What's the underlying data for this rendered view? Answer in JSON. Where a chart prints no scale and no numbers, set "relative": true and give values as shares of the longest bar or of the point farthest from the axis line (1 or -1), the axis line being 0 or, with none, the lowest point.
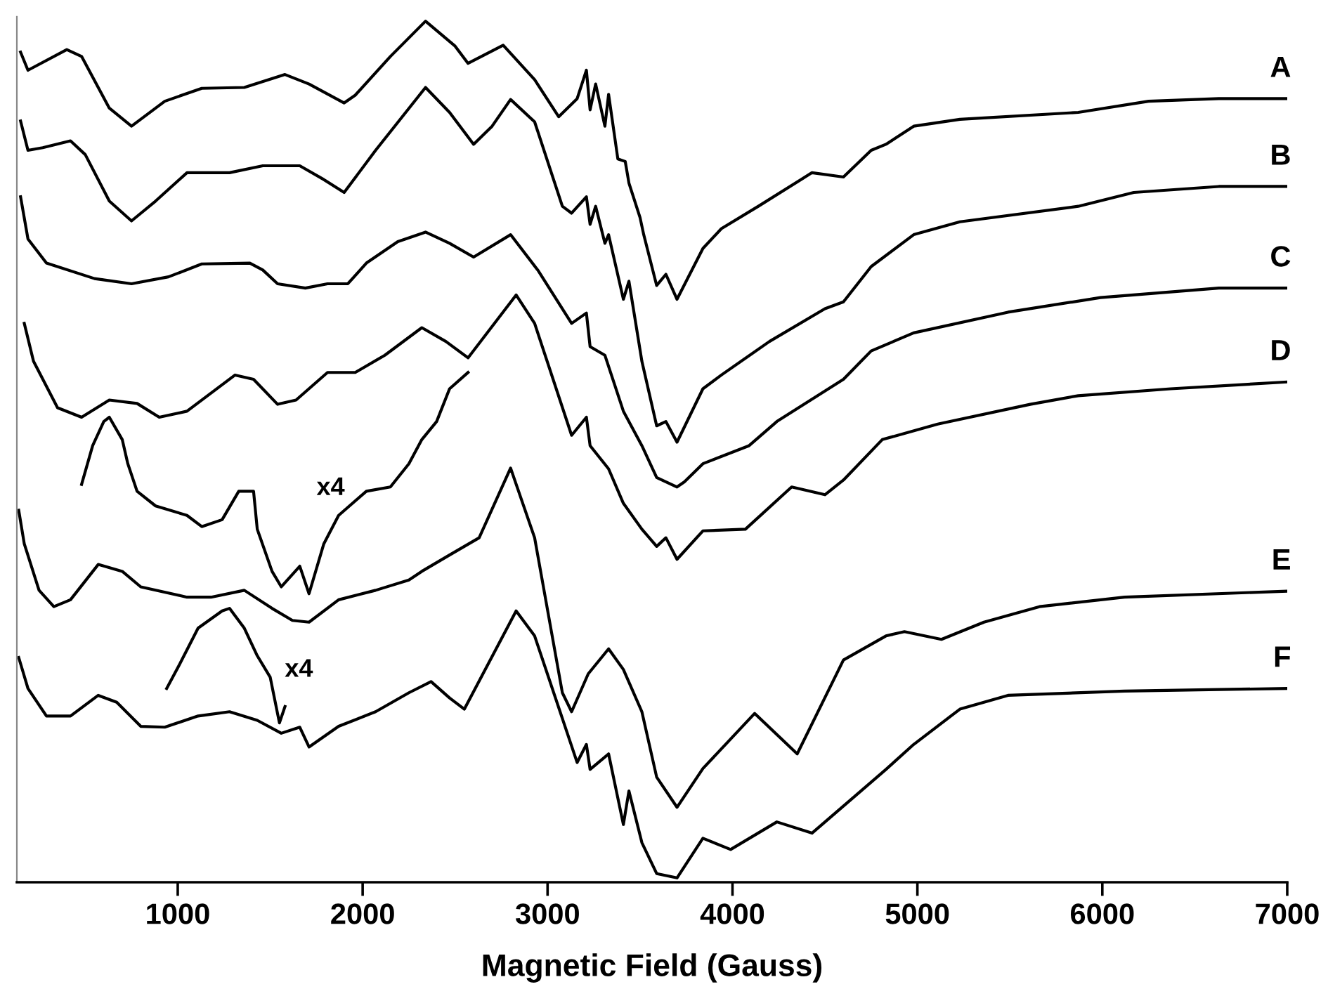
{
  "chart_data": {
    "type": "line",
    "relative": true,
    "xlabel": "Magnetic Field (Gauss)",
    "xlim": [
      130,
      7000
    ],
    "xticks": [
      1000,
      2000,
      3000,
      4000,
      5000,
      6000,
      7000
    ],
    "grid": false,
    "legend": false,
    "tick_labels": "x",
    "marker": "none",
    "line_style": "solid",
    "annotations": [
      "x4",
      "x4"
    ],
    "series": [
      {
        "name": "A",
        "color": "#000000",
        "x": [
          150,
          190,
          400,
          480,
          630,
          750,
          930,
          1130,
          1360,
          1580,
          1710,
          1900,
          1960,
          2150,
          2340,
          2500,
          2570,
          2760,
          2930,
          3060,
          3160,
          3210,
          3230,
          3260,
          3310,
          3330,
          3380,
          3420,
          3440,
          3500,
          3520,
          3590,
          3640,
          3700,
          3840,
          3940,
          4140,
          4430,
          4600,
          4750,
          4830,
          4980,
          5230,
          5870,
          6250,
          6630,
          7000
        ],
        "values": [
          0.964,
          0.943,
          0.967,
          0.959,
          0.899,
          0.878,
          0.907,
          0.922,
          0.923,
          0.938,
          0.927,
          0.905,
          0.914,
          0.959,
          1.0,
          0.971,
          0.951,
          0.972,
          0.932,
          0.889,
          0.91,
          0.943,
          0.897,
          0.927,
          0.878,
          0.915,
          0.84,
          0.837,
          0.812,
          0.772,
          0.752,
          0.693,
          0.706,
          0.677,
          0.736,
          0.759,
          0.785,
          0.824,
          0.819,
          0.85,
          0.857,
          0.878,
          0.886,
          0.894,
          0.907,
          0.91,
          0.91
        ]
      },
      {
        "name": "B",
        "color": "#000000",
        "x": [
          150,
          190,
          270,
          420,
          500,
          630,
          750,
          880,
          1050,
          1280,
          1460,
          1660,
          1790,
          1900,
          2070,
          2340,
          2470,
          2600,
          2700,
          2800,
          2930,
          3080,
          3130,
          3210,
          3230,
          3260,
          3310,
          3330,
          3410,
          3440,
          3510,
          3590,
          3640,
          3700,
          3840,
          3940,
          4200,
          4500,
          4600,
          4750,
          4980,
          5230,
          5870,
          6170,
          6630,
          7000
        ],
        "values": [
          0.884,
          0.85,
          0.853,
          0.861,
          0.845,
          0.791,
          0.768,
          0.791,
          0.824,
          0.824,
          0.832,
          0.832,
          0.816,
          0.801,
          0.85,
          0.923,
          0.894,
          0.857,
          0.878,
          0.909,
          0.883,
          0.785,
          0.777,
          0.796,
          0.764,
          0.785,
          0.742,
          0.752,
          0.677,
          0.698,
          0.605,
          0.53,
          0.535,
          0.511,
          0.573,
          0.589,
          0.628,
          0.666,
          0.674,
          0.715,
          0.752,
          0.767,
          0.785,
          0.801,
          0.808,
          0.808
        ]
      },
      {
        "name": "C",
        "color": "#000000",
        "x": [
          150,
          190,
          290,
          550,
          750,
          950,
          1130,
          1390,
          1460,
          1540,
          1690,
          1810,
          1920,
          2020,
          2190,
          2340,
          2470,
          2600,
          2800,
          2950,
          3130,
          3210,
          3230,
          3310,
          3410,
          3510,
          3590,
          3700,
          3740,
          3840,
          4090,
          4240,
          4600,
          4750,
          4980,
          5490,
          5990,
          6630,
          7000
        ],
        "values": [
          0.796,
          0.747,
          0.719,
          0.701,
          0.695,
          0.703,
          0.718,
          0.719,
          0.711,
          0.695,
          0.69,
          0.695,
          0.695,
          0.719,
          0.744,
          0.755,
          0.742,
          0.726,
          0.752,
          0.71,
          0.649,
          0.661,
          0.622,
          0.612,
          0.547,
          0.507,
          0.47,
          0.459,
          0.465,
          0.486,
          0.507,
          0.535,
          0.584,
          0.617,
          0.638,
          0.662,
          0.679,
          0.69,
          0.69
        ]
      },
      {
        "name": "D",
        "color": "#000000",
        "x": [
          170,
          220,
          350,
          480,
          630,
          780,
          900,
          1050,
          1310,
          1410,
          1540,
          1640,
          1810,
          1960,
          2120,
          2320,
          2450,
          2570,
          2830,
          2930,
          3130,
          3210,
          3230,
          3330,
          3410,
          3510,
          3590,
          3640,
          3700,
          3840,
          4070,
          4320,
          4500,
          4600,
          4810,
          5110,
          5610,
          5870,
          6370,
          7000
        ],
        "values": [
          0.649,
          0.605,
          0.551,
          0.54,
          0.56,
          0.556,
          0.54,
          0.547,
          0.589,
          0.584,
          0.555,
          0.56,
          0.592,
          0.592,
          0.612,
          0.644,
          0.628,
          0.609,
          0.682,
          0.649,
          0.519,
          0.54,
          0.507,
          0.48,
          0.44,
          0.41,
          0.39,
          0.4,
          0.375,
          0.408,
          0.41,
          0.459,
          0.45,
          0.467,
          0.514,
          0.532,
          0.555,
          0.565,
          0.573,
          0.581
        ]
      },
      {
        "name": "E",
        "color": "#000000",
        "x": [
          140,
          170,
          250,
          330,
          420,
          570,
          700,
          800,
          1050,
          1180,
          1360,
          1510,
          1620,
          1710,
          1870,
          2070,
          2250,
          2320,
          2470,
          2630,
          2800,
          2930,
          3080,
          3130,
          3220,
          3330,
          3410,
          3510,
          3590,
          3700,
          3840,
          4120,
          4350,
          4600,
          4830,
          4930,
          5130,
          5360,
          5660,
          6120,
          7000
        ],
        "values": [
          0.432,
          0.393,
          0.339,
          0.32,
          0.328,
          0.369,
          0.361,
          0.343,
          0.331,
          0.331,
          0.339,
          0.318,
          0.304,
          0.302,
          0.328,
          0.339,
          0.351,
          0.361,
          0.38,
          0.4,
          0.481,
          0.4,
          0.22,
          0.198,
          0.242,
          0.271,
          0.247,
          0.198,
          0.122,
          0.087,
          0.132,
          0.196,
          0.149,
          0.258,
          0.286,
          0.291,
          0.282,
          0.302,
          0.32,
          0.331,
          0.338
        ]
      },
      {
        "name": "F",
        "color": "#000000",
        "x": [
          140,
          190,
          290,
          420,
          570,
          670,
          800,
          930,
          1110,
          1280,
          1430,
          1560,
          1660,
          1710,
          1870,
          2070,
          2250,
          2370,
          2470,
          2550,
          2830,
          2930,
          3160,
          3210,
          3230,
          3330,
          3410,
          3440,
          3510,
          3590,
          3700,
          3840,
          3990,
          4240,
          4430,
          4830,
          4980,
          5230,
          5490,
          6120,
          7000
        ],
        "values": [
          0.261,
          0.225,
          0.193,
          0.193,
          0.217,
          0.209,
          0.181,
          0.18,
          0.193,
          0.198,
          0.188,
          0.173,
          0.18,
          0.157,
          0.181,
          0.198,
          0.22,
          0.233,
          0.214,
          0.201,
          0.315,
          0.286,
          0.139,
          0.16,
          0.131,
          0.149,
          0.067,
          0.106,
          0.046,
          0.01,
          0.005,
          0.051,
          0.038,
          0.07,
          0.057,
          0.131,
          0.16,
          0.201,
          0.217,
          0.222,
          0.225
        ]
      },
      {
        "color": "#000000",
        "x": [
          480,
          540,
          600,
          630,
          700,
          730,
          780,
          880,
          1050,
          1130,
          1240,
          1330,
          1410,
          1430,
          1510,
          1560,
          1660,
          1710,
          1790,
          1870,
          2020,
          2150,
          2250,
          2320,
          2400,
          2470,
          2570
        ],
        "values": [
          0.462,
          0.507,
          0.535,
          0.54,
          0.514,
          0.486,
          0.454,
          0.437,
          0.426,
          0.413,
          0.421,
          0.454,
          0.454,
          0.41,
          0.361,
          0.343,
          0.367,
          0.335,
          0.393,
          0.426,
          0.454,
          0.459,
          0.486,
          0.514,
          0.535,
          0.573,
          0.592
        ]
      },
      {
        "color": "#000000",
        "x": [
          940,
          1010,
          1110,
          1240,
          1280,
          1360,
          1430,
          1500,
          1550,
          1580
        ],
        "values": [
          0.225,
          0.253,
          0.295,
          0.315,
          0.318,
          0.295,
          0.263,
          0.238,
          0.185,
          0.204
        ]
      }
    ]
  }
}
